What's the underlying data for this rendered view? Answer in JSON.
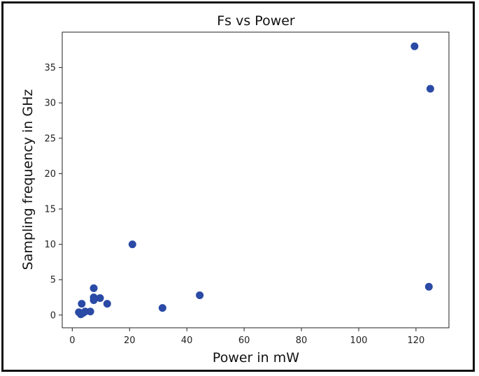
{
  "chart_data": {
    "type": "scatter",
    "title": "Fs vs Power",
    "xlabel": "Power in mW",
    "ylabel": "Sampling frequency in GHz",
    "xlim": [
      -3.5,
      131.5
    ],
    "ylim": [
      -1.8,
      40
    ],
    "xticks": [
      0,
      20,
      40,
      60,
      80,
      100,
      120
    ],
    "yticks": [
      0,
      5,
      10,
      15,
      20,
      25,
      30,
      35
    ],
    "grid": false,
    "marker_color": "#2a4aa5",
    "points": [
      {
        "x": 119.5,
        "y": 38
      },
      {
        "x": 125,
        "y": 32
      },
      {
        "x": 124.5,
        "y": 4
      },
      {
        "x": 21,
        "y": 10
      },
      {
        "x": 44.5,
        "y": 2.8
      },
      {
        "x": 31.5,
        "y": 1
      },
      {
        "x": 7.5,
        "y": 3.8
      },
      {
        "x": 7.5,
        "y": 2.5
      },
      {
        "x": 7.5,
        "y": 2.1
      },
      {
        "x": 9.7,
        "y": 2.4
      },
      {
        "x": 12.2,
        "y": 1.6
      },
      {
        "x": 3.3,
        "y": 1.6
      },
      {
        "x": 6.3,
        "y": 0.5
      },
      {
        "x": 4.5,
        "y": 0.5
      },
      {
        "x": 2.3,
        "y": 0.4
      },
      {
        "x": 3.0,
        "y": 0.1
      },
      {
        "x": 3.8,
        "y": 0.3
      }
    ]
  }
}
